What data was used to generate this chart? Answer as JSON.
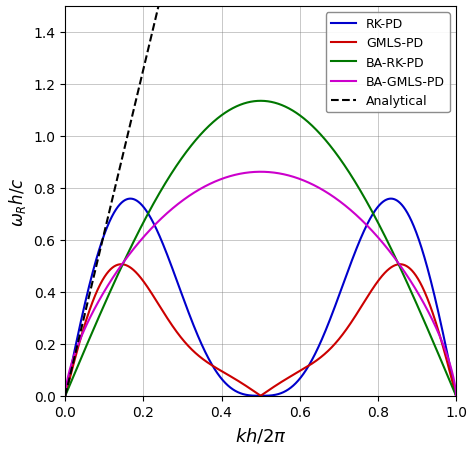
{
  "xlabel": "$kh/2\\pi$",
  "ylabel": "$\\omega_R h/c$",
  "xlim": [
    0.0,
    1.0
  ],
  "ylim": [
    0.0,
    1.5
  ],
  "xticks": [
    0.0,
    0.2,
    0.4,
    0.6,
    0.8,
    1.0
  ],
  "yticks": [
    0.0,
    0.2,
    0.4,
    0.6,
    0.8,
    1.0,
    1.2,
    1.4
  ],
  "legend_labels": [
    "RK-PD",
    "GMLS-PD",
    "BA-RK-PD",
    "BA-GMLS-PD",
    "Analytical"
  ],
  "colors": {
    "rk_pd": "#0000cc",
    "gmls_pd": "#cc0000",
    "ba_rk_pd": "#007700",
    "ba_gmls_pd": "#cc00cc",
    "analytical": "black"
  },
  "figsize": [
    4.74,
    4.52
  ],
  "dpi": 100,
  "rk_a": 0.584,
  "rk_b": 0.292,
  "gmls_a": 0.38,
  "gmls_b": 0.19,
  "gmls_c": 0.055,
  "ba_rk_A": 1.135,
  "ba_rk_alpha": 0.55,
  "ba_gmls_peak": 0.862,
  "analytical_slope": 6.2832
}
